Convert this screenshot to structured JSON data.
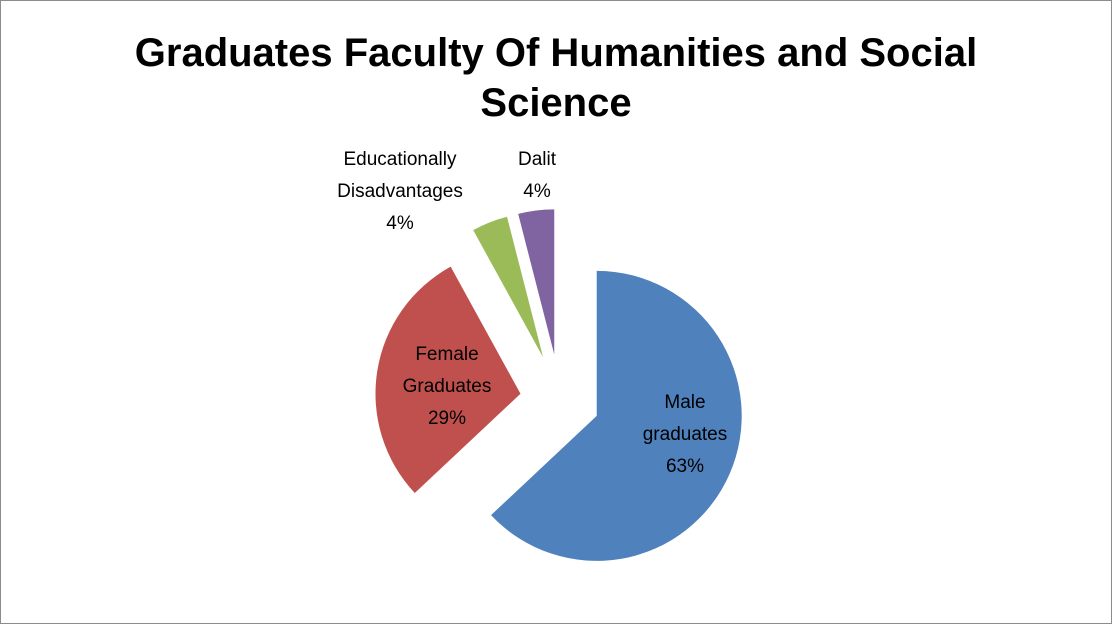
{
  "chart_data": {
    "type": "pie",
    "title": "Graduates Faculty Of Humanities and Social Science",
    "categories": [
      "Male graduates",
      "Female Graduates",
      "Educationally Disadvantages",
      "Dalit"
    ],
    "values": [
      63,
      29,
      4,
      4
    ],
    "value_labels": [
      "63%",
      "29%",
      "4%",
      "4%"
    ],
    "colors": [
      "#4f81bd",
      "#c0504d",
      "#9bbb59",
      "#8064a2"
    ]
  }
}
